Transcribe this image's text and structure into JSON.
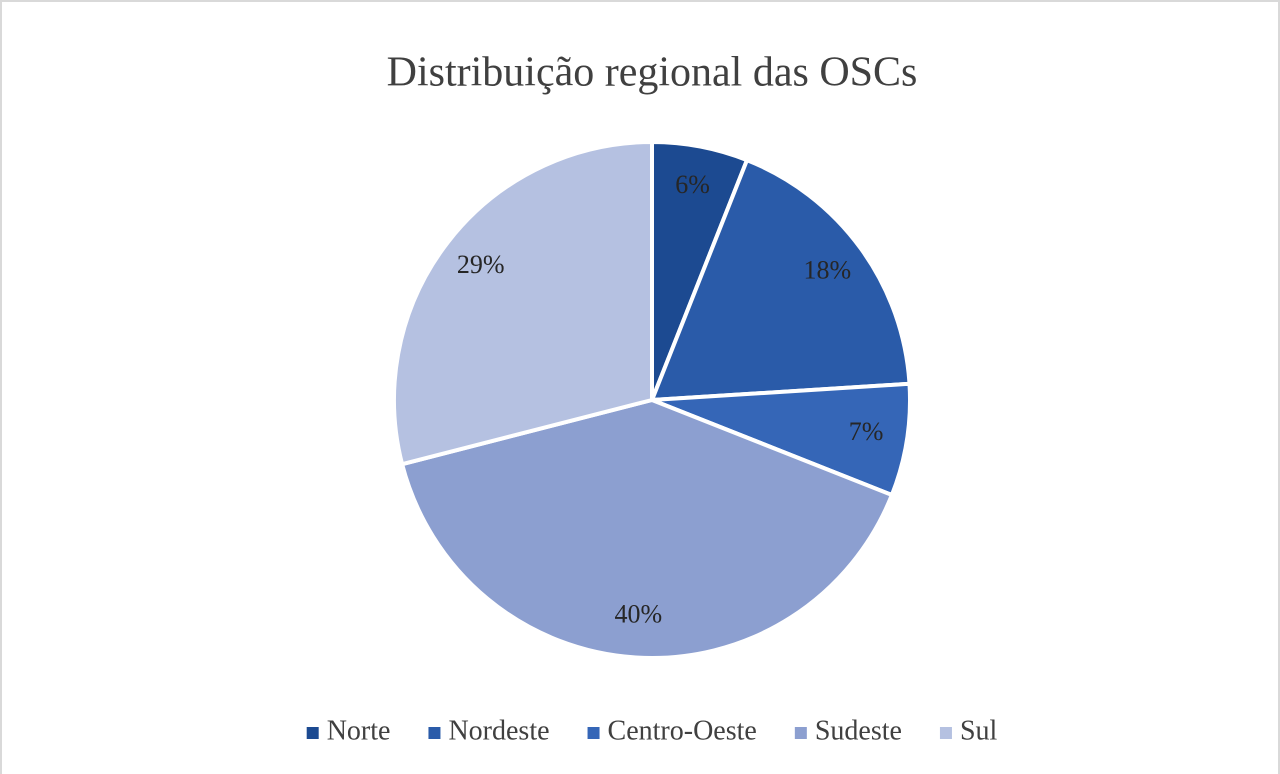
{
  "chart_data": {
    "type": "pie",
    "title": "Distribuição regional das OSCs",
    "categories": [
      "Norte",
      "Nordeste",
      "Centro-Oeste",
      "Sudeste",
      "Sul"
    ],
    "values": [
      6,
      18,
      7,
      40,
      29
    ],
    "value_labels": [
      "6%",
      "18%",
      "7%",
      "40%",
      "29%"
    ],
    "colors": [
      "#1c4a91",
      "#2a5ba9",
      "#3566b7",
      "#8c9fd0",
      "#b5c1e1"
    ],
    "legend": "bottom"
  }
}
